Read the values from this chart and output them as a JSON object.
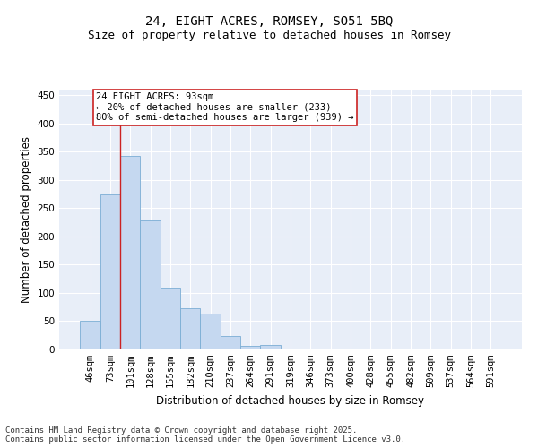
{
  "title_line1": "24, EIGHT ACRES, ROMSEY, SO51 5BQ",
  "title_line2": "Size of property relative to detached houses in Romsey",
  "xlabel": "Distribution of detached houses by size in Romsey",
  "ylabel": "Number of detached properties",
  "categories": [
    "46sqm",
    "73sqm",
    "101sqm",
    "128sqm",
    "155sqm",
    "182sqm",
    "210sqm",
    "237sqm",
    "264sqm",
    "291sqm",
    "319sqm",
    "346sqm",
    "373sqm",
    "400sqm",
    "428sqm",
    "455sqm",
    "482sqm",
    "509sqm",
    "537sqm",
    "564sqm",
    "591sqm"
  ],
  "values": [
    51,
    275,
    343,
    228,
    110,
    73,
    64,
    24,
    6,
    8,
    0,
    2,
    0,
    0,
    1,
    0,
    0,
    0,
    0,
    0,
    2
  ],
  "bar_color": "#c5d8f0",
  "bar_edge_color": "#7aadd4",
  "background_color": "#e8eef8",
  "grid_color": "#ffffff",
  "vline_color": "#cc2222",
  "vline_x_index": 1.5,
  "annotation_text": "24 EIGHT ACRES: 93sqm\n← 20% of detached houses are smaller (233)\n80% of semi-detached houses are larger (939) →",
  "annotation_box_edgecolor": "#cc2222",
  "ylim": [
    0,
    460
  ],
  "yticks": [
    0,
    50,
    100,
    150,
    200,
    250,
    300,
    350,
    400,
    450
  ],
  "footnote": "Contains HM Land Registry data © Crown copyright and database right 2025.\nContains public sector information licensed under the Open Government Licence v3.0.",
  "title_fontsize": 10,
  "subtitle_fontsize": 9,
  "axis_label_fontsize": 8.5,
  "tick_fontsize": 7.5,
  "annotation_fontsize": 7.5,
  "footnote_fontsize": 6.5
}
